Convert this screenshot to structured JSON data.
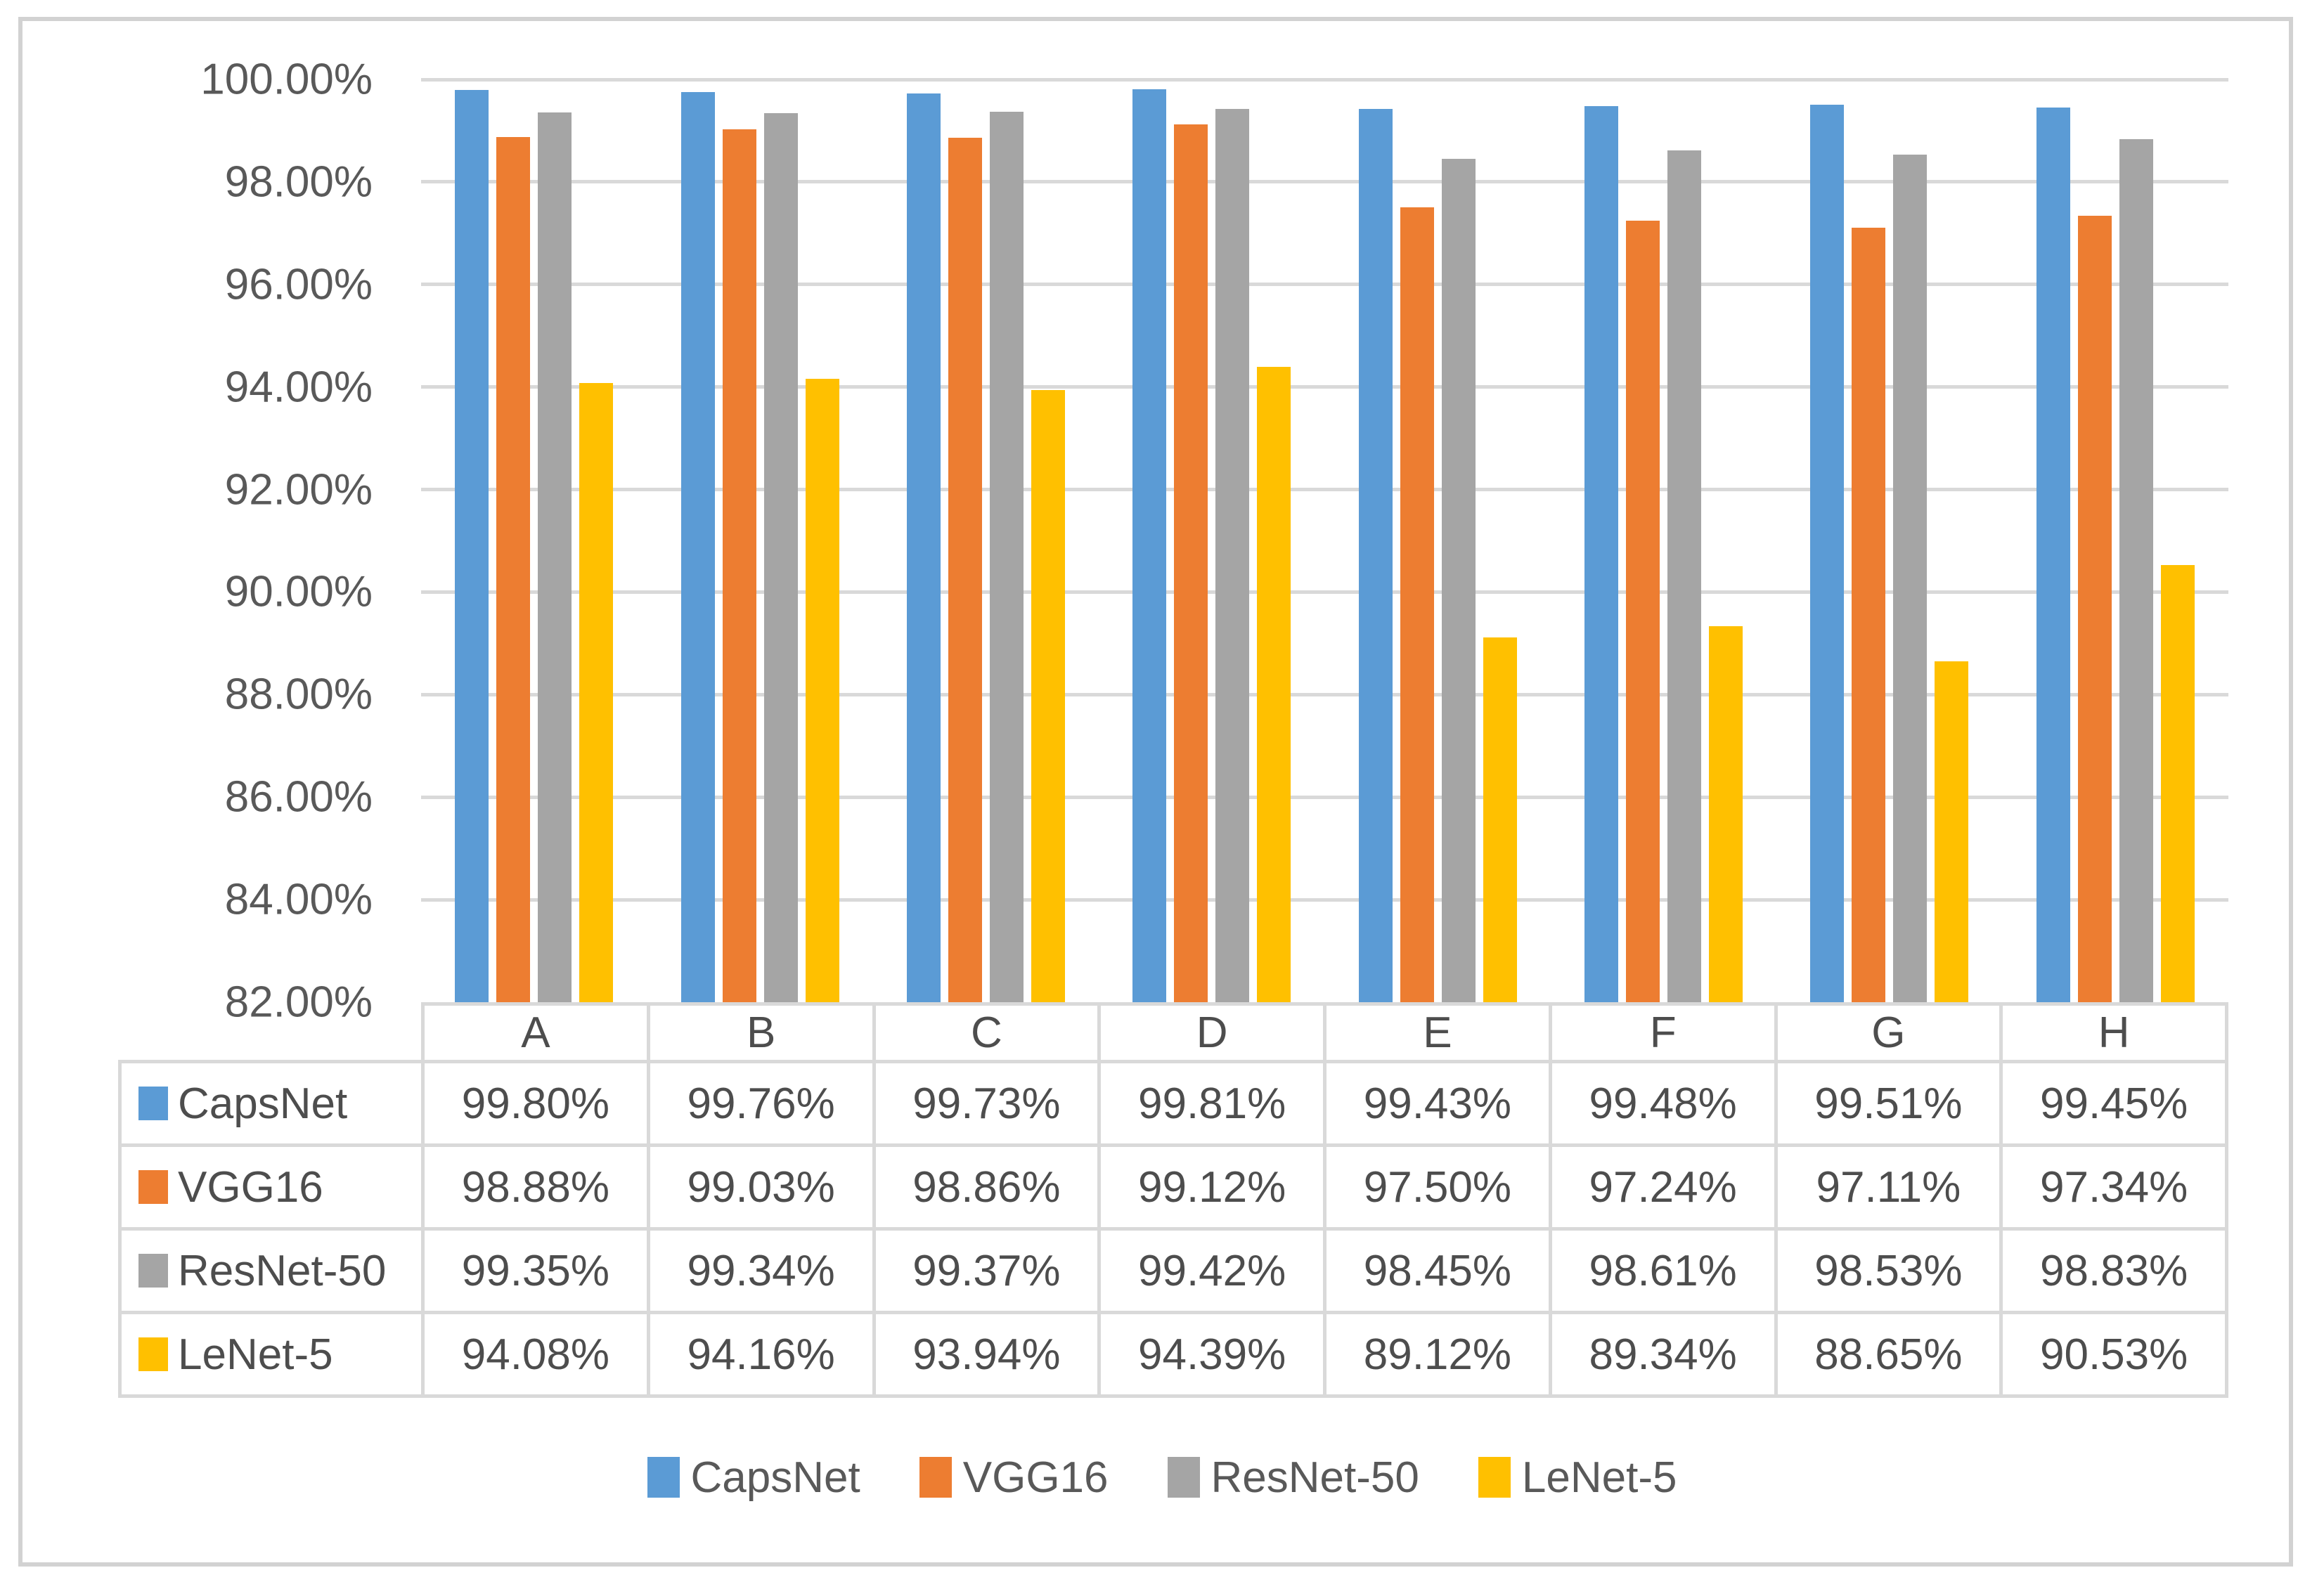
{
  "figure": {
    "background": "#ffffff",
    "frame_border_color": "#d2d2d2",
    "gridline_color": "#d9d9d9",
    "table_border_color": "#d9d9d9",
    "axis_text_color": "#595959",
    "table_text_color": "#4d4d4d"
  },
  "chart_data": {
    "type": "bar",
    "title": "",
    "xlabel": "",
    "ylabel": "",
    "categories": [
      "A",
      "B",
      "C",
      "D",
      "E",
      "F",
      "G",
      "H"
    ],
    "series": [
      {
        "name": "CapsNet",
        "color": "#5B9BD5",
        "values": [
          99.8,
          99.76,
          99.73,
          99.81,
          99.43,
          99.48,
          99.51,
          99.45
        ]
      },
      {
        "name": "VGG16",
        "color": "#ED7D31",
        "values": [
          98.88,
          99.03,
          98.86,
          99.12,
          97.5,
          97.24,
          97.11,
          97.34
        ]
      },
      {
        "name": "ResNet-50",
        "color": "#A5A5A5",
        "values": [
          99.35,
          99.34,
          99.37,
          99.42,
          98.45,
          98.61,
          98.53,
          98.83
        ]
      },
      {
        "name": "LeNet-5",
        "color": "#FFC000",
        "values": [
          94.08,
          94.16,
          93.94,
          94.39,
          89.12,
          89.34,
          88.65,
          90.53
        ]
      }
    ],
    "ylim": [
      82,
      100
    ],
    "ytick_step": 2,
    "ytick_labels": [
      "100.00%",
      "98.00%",
      "96.00%",
      "94.00%",
      "92.00%",
      "90.00%",
      "88.00%",
      "86.00%",
      "84.00%",
      "82.00%"
    ],
    "grid": true,
    "legend_position": "bottom",
    "legend_labels": [
      "CapsNet",
      "VGG16",
      "ResNet-50",
      "LeNet-5"
    ],
    "data_table": {
      "corner_cell": "",
      "column_headers": [
        "A",
        "B",
        "C",
        "D",
        "E",
        "F",
        "G",
        "H"
      ],
      "row_headers": [
        "CapsNet",
        "VGG16",
        "ResNet-50",
        "LeNet-5"
      ],
      "cell_values": [
        [
          "99.80%",
          "99.76%",
          "99.73%",
          "99.81%",
          "99.43%",
          "99.48%",
          "99.51%",
          "99.45%"
        ],
        [
          "98.88%",
          "99.03%",
          "98.86%",
          "99.12%",
          "97.50%",
          "97.24%",
          "97.11%",
          "97.34%"
        ],
        [
          "99.35%",
          "99.34%",
          "99.37%",
          "99.42%",
          "98.45%",
          "98.61%",
          "98.53%",
          "98.83%"
        ],
        [
          "94.08%",
          "94.16%",
          "93.94%",
          "94.39%",
          "89.12%",
          "89.34%",
          "88.65%",
          "90.53%"
        ]
      ]
    }
  }
}
